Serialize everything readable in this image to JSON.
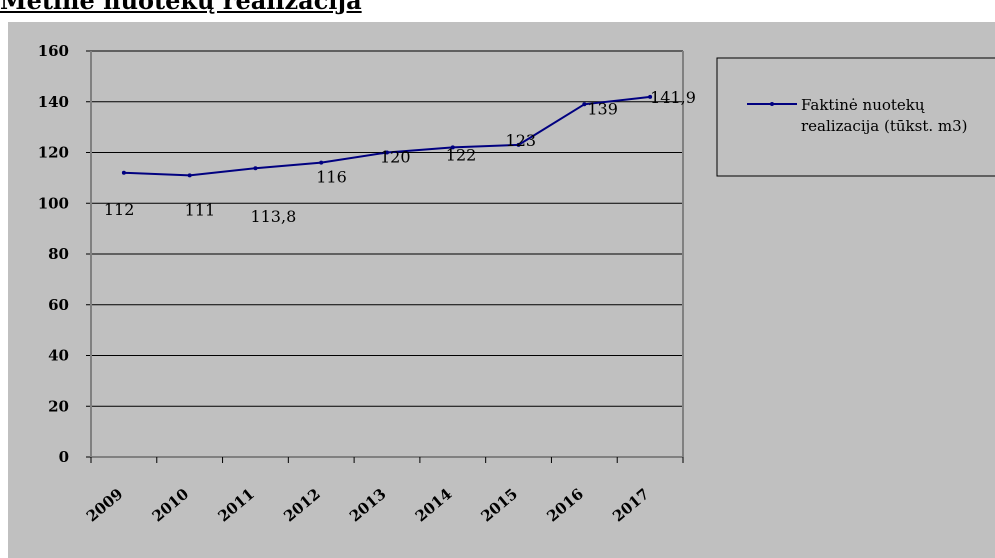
{
  "page_title": "Metinė nuotekų realizacija",
  "chart_data": {
    "type": "line",
    "categories": [
      "2009",
      "2010",
      "2011",
      "2012",
      "2013",
      "2014",
      "2015",
      "2016",
      "2017"
    ],
    "x_positions": [
      0.5,
      1.5,
      2.5,
      3.5,
      4.5,
      5.5,
      6.5,
      7.5,
      8.5
    ],
    "series": [
      {
        "name": "Faktinė nuotekų realizacija (tūkst. m3)",
        "values": [
          112,
          111,
          113.8,
          116,
          120,
          122,
          123,
          139,
          141.9
        ],
        "x": [
          0.5,
          1.5,
          2.5,
          3.5,
          4.5,
          5.5,
          6.5,
          7.5,
          8.5
        ],
        "data_labels": [
          "112",
          "111",
          "113,8",
          "116",
          "120",
          "122",
          "123",
          "139",
          "141,9"
        ],
        "color": "#000080"
      }
    ],
    "ylim": [
      0,
      160
    ],
    "yticks": [
      0,
      20,
      40,
      60,
      80,
      100,
      120,
      140,
      160
    ],
    "ytick_labels": [
      "0",
      "20",
      "40",
      "60",
      "80",
      "100",
      "120",
      "140",
      "160"
    ],
    "xlim": [
      0,
      9
    ],
    "xtick_positions": [
      0,
      1,
      2,
      3,
      4,
      5,
      6,
      7,
      8,
      9
    ],
    "grid": true,
    "legend_position": "right",
    "colors": {
      "background": "#c0c0c0",
      "line": "#000080",
      "grid": "#000000"
    }
  }
}
